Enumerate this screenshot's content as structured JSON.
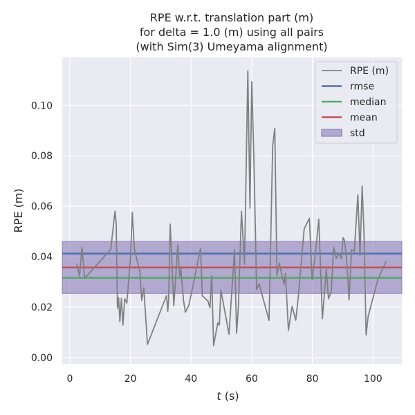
{
  "chart_data": {
    "type": "line",
    "title": [
      "RPE w.r.t. translation part (m)",
      "for delta = 1.0 (m) using all pairs",
      "(with Sim(3) Umeyama alignment)"
    ],
    "xlabel_italic": "t",
    "xlabel_rest": " (s)",
    "ylabel": "RPE (m)",
    "xlim": [
      -2.5,
      109.5
    ],
    "ylim": [
      -0.0025,
      0.119
    ],
    "xticks": [
      0,
      20,
      40,
      60,
      80,
      100
    ],
    "xtick_labels": [
      "0",
      "20",
      "40",
      "60",
      "80",
      "100"
    ],
    "yticks": [
      0.0,
      0.02,
      0.04,
      0.06,
      0.08,
      0.1
    ],
    "ytick_labels": [
      "0.00",
      "0.02",
      "0.04",
      "0.06",
      "0.08",
      "0.10"
    ],
    "grid": true,
    "legend_position": "top-right",
    "legend": [
      {
        "label": "RPE (m)",
        "kind": "line",
        "color": "#808080"
      },
      {
        "label": "rmse",
        "kind": "line",
        "color": "#4c72b0"
      },
      {
        "label": "median",
        "kind": "line",
        "color": "#55a868"
      },
      {
        "label": "mean",
        "kind": "line",
        "color": "#c44e52"
      },
      {
        "label": "std",
        "kind": "patch",
        "color": "#8172b3"
      }
    ],
    "stats": {
      "rmse": 0.0412,
      "median": 0.0316,
      "mean": 0.0357,
      "std_band": [
        0.0254,
        0.046
      ]
    },
    "series": [
      {
        "name": "RPE (m)",
        "color": "#808080",
        "x": [
          2.3,
          3.2,
          4.0,
          4.9,
          13.5,
          14.9,
          15.3,
          15.7,
          16.1,
          16.5,
          17.0,
          17.5,
          18.1,
          18.8,
          20.0,
          20.6,
          21.3,
          23.1,
          23.7,
          24.4,
          25.6,
          31.9,
          32.3,
          32.6,
          33.1,
          34.3,
          35.6,
          36.2,
          36.6,
          37.5,
          38.1,
          39.3,
          43.1,
          43.7,
          45.6,
          46.2,
          46.8,
          47.4,
          48.8,
          49.3,
          49.8,
          52.5,
          53.7,
          54.3,
          55.0,
          55.6,
          56.6,
          57.6,
          58.7,
          59.4,
          60.0,
          60.7,
          61.6,
          62.4,
          65.7,
          66.9,
          67.6,
          68.3,
          69.1,
          70.0,
          70.7,
          71.1,
          72.1,
          73.3,
          74.5,
          75.3,
          77.3,
          79.0,
          79.9,
          80.9,
          82.1,
          83.3,
          84.6,
          85.3,
          86.2,
          87.0,
          87.9,
          88.9,
          89.6,
          90.1,
          90.6,
          91.3,
          92.1,
          92.9,
          93.8,
          95.0,
          95.7,
          96.4,
          97.0,
          97.7,
          98.4,
          101.6,
          104.3
        ],
        "y": [
          0.0372,
          0.0323,
          0.0437,
          0.0314,
          0.0429,
          0.058,
          0.0534,
          0.0195,
          0.0237,
          0.0142,
          0.0235,
          0.0129,
          0.0233,
          0.0216,
          0.0394,
          0.0575,
          0.043,
          0.0341,
          0.0226,
          0.0276,
          0.0052,
          0.0246,
          0.0183,
          0.0235,
          0.0529,
          0.0206,
          0.0446,
          0.0322,
          0.0352,
          0.0224,
          0.018,
          0.0208,
          0.0432,
          0.0245,
          0.0223,
          0.0197,
          0.0325,
          0.0047,
          0.0138,
          0.0129,
          0.0268,
          0.0092,
          0.0316,
          0.0428,
          0.0096,
          0.0203,
          0.058,
          0.037,
          0.1136,
          0.0592,
          0.1094,
          0.0786,
          0.0269,
          0.0293,
          0.0147,
          0.0837,
          0.0909,
          0.0326,
          0.0375,
          0.0323,
          0.029,
          0.0334,
          0.0108,
          0.0203,
          0.0148,
          0.0235,
          0.0511,
          0.0552,
          0.0309,
          0.04,
          0.0548,
          0.0154,
          0.0351,
          0.0233,
          0.026,
          0.0437,
          0.0393,
          0.0413,
          0.0392,
          0.0475,
          0.0465,
          0.0385,
          0.0229,
          0.0427,
          0.0421,
          0.0645,
          0.0405,
          0.068,
          0.0499,
          0.009,
          0.0164,
          0.031,
          0.0381
        ]
      }
    ]
  }
}
